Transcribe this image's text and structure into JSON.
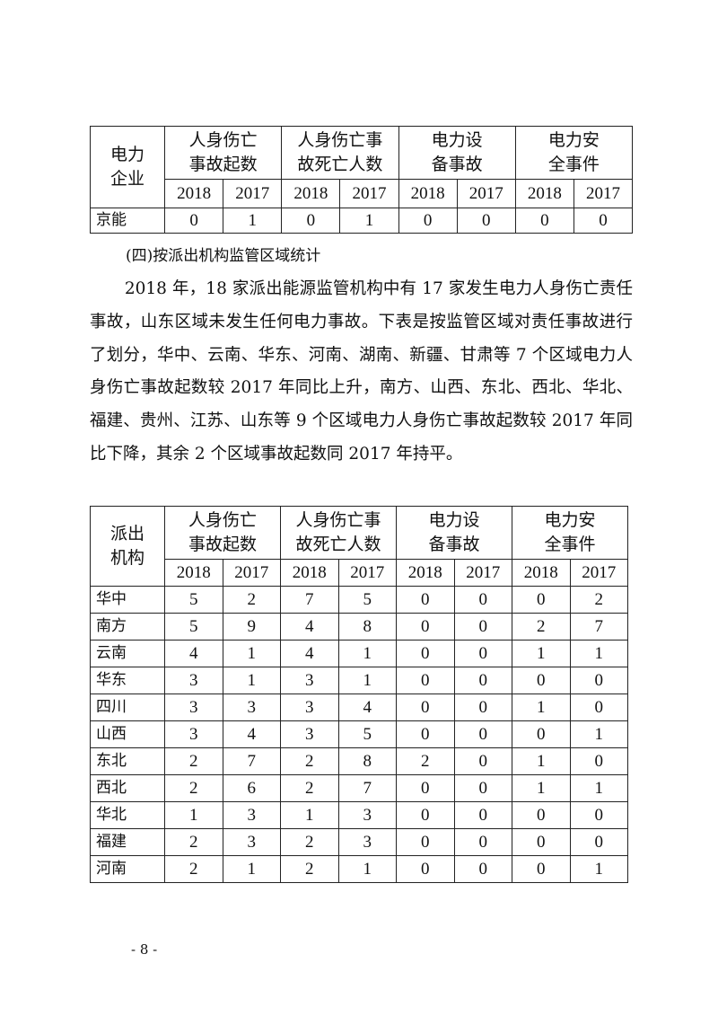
{
  "table1": {
    "corner": "电力\n企业",
    "groups": [
      "人身伤亡\n事故起数",
      "人身伤亡事\n故死亡人数",
      "电力设\n备事故",
      "电力安\n全事件"
    ],
    "years": [
      "2018",
      "2017",
      "2018",
      "2017",
      "2018",
      "2017",
      "2018",
      "2017"
    ],
    "rows": [
      {
        "name": "京能",
        "values": [
          "0",
          "1",
          "0",
          "1",
          "0",
          "0",
          "0",
          "0"
        ]
      }
    ]
  },
  "section_heading": "(四)按派出机构监管区域统计",
  "paragraph": "2018 年，18 家派出能源监管机构中有 17 家发生电力人身伤亡责任事故，山东区域未发生任何电力事故。下表是按监管区域对责任事故进行了划分，华中、云南、华东、河南、湖南、新疆、甘肃等 7 个区域电力人身伤亡事故起数较 2017 年同比上升，南方、山西、东北、西北、华北、福建、贵州、江苏、山东等 9 个区域电力人身伤亡事故起数较 2017 年同比下降，其余 2 个区域事故起数同 2017 年持平。",
  "table2": {
    "corner": "派出\n机构",
    "groups": [
      "人身伤亡\n事故起数",
      "人身伤亡事\n故死亡人数",
      "电力设\n备事故",
      "电力安\n全事件"
    ],
    "years": [
      "2018",
      "2017",
      "2018",
      "2017",
      "2018",
      "2017",
      "2018",
      "2017"
    ],
    "rows": [
      {
        "name": "华中",
        "values": [
          "5",
          "2",
          "7",
          "5",
          "0",
          "0",
          "0",
          "2"
        ]
      },
      {
        "name": "南方",
        "values": [
          "5",
          "9",
          "4",
          "8",
          "0",
          "0",
          "2",
          "7"
        ]
      },
      {
        "name": "云南",
        "values": [
          "4",
          "1",
          "4",
          "1",
          "0",
          "0",
          "1",
          "1"
        ]
      },
      {
        "name": "华东",
        "values": [
          "3",
          "1",
          "3",
          "1",
          "0",
          "0",
          "0",
          "0"
        ]
      },
      {
        "name": "四川",
        "values": [
          "3",
          "3",
          "3",
          "4",
          "0",
          "0",
          "1",
          "0"
        ]
      },
      {
        "name": "山西",
        "values": [
          "3",
          "4",
          "3",
          "5",
          "0",
          "0",
          "0",
          "1"
        ]
      },
      {
        "name": "东北",
        "values": [
          "2",
          "7",
          "2",
          "8",
          "2",
          "0",
          "1",
          "0"
        ]
      },
      {
        "name": "西北",
        "values": [
          "2",
          "6",
          "2",
          "7",
          "0",
          "0",
          "1",
          "1"
        ]
      },
      {
        "name": "华北",
        "values": [
          "1",
          "3",
          "1",
          "3",
          "0",
          "0",
          "0",
          "0"
        ]
      },
      {
        "name": "福建",
        "values": [
          "2",
          "3",
          "2",
          "3",
          "0",
          "0",
          "0",
          "0"
        ]
      },
      {
        "name": "河南",
        "values": [
          "2",
          "1",
          "2",
          "1",
          "0",
          "0",
          "0",
          "1"
        ]
      }
    ]
  },
  "page_number": "- 8 -"
}
